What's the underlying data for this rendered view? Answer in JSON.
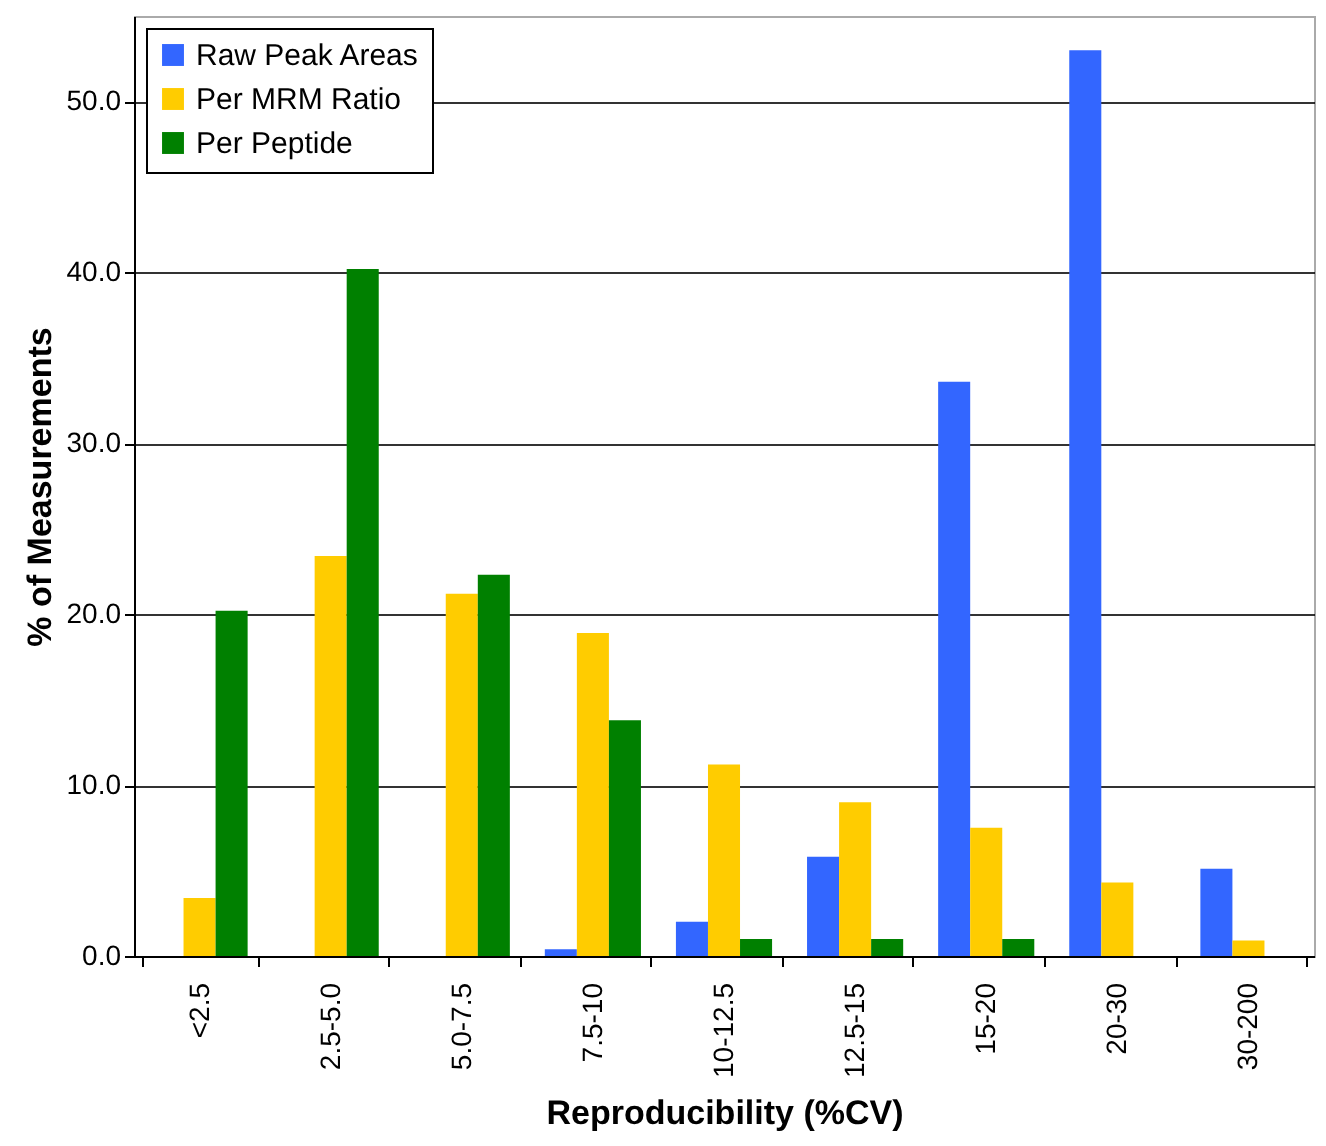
{
  "chart_data": {
    "type": "bar",
    "xlabel": "Reproducibility (%CV)",
    "ylabel": "% of Measurements",
    "categories": [
      "<2.5",
      "2.5-5.0",
      "5.0-7.5",
      "7.5-10",
      "10-12.5",
      "12.5-15",
      "15-20",
      "20-30",
      "30-200"
    ],
    "series": [
      {
        "name": "Raw Peak Areas",
        "color": "#3366ff",
        "values": [
          0,
          0,
          0,
          0.4,
          2.0,
          5.8,
          33.6,
          53.0,
          5.1
        ]
      },
      {
        "name": "Per MRM Ratio",
        "color": "#ffcc00",
        "values": [
          3.4,
          23.4,
          21.2,
          18.9,
          11.2,
          9.0,
          7.5,
          4.3,
          0.9
        ]
      },
      {
        "name": "Per Peptide",
        "color": "#008000",
        "values": [
          20.2,
          40.2,
          22.3,
          13.8,
          1.0,
          1.0,
          1.0,
          0,
          0
        ]
      }
    ],
    "ylim": [
      0,
      55
    ],
    "yticks": [
      {
        "value": 0,
        "label": "0.0"
      },
      {
        "value": 10,
        "label": "10.0"
      },
      {
        "value": 20,
        "label": "20.0"
      },
      {
        "value": 30,
        "label": "30.0"
      },
      {
        "value": 40,
        "label": "40.0"
      },
      {
        "value": 50,
        "label": "50.0"
      }
    ],
    "grid": "y",
    "legend": "top left"
  }
}
